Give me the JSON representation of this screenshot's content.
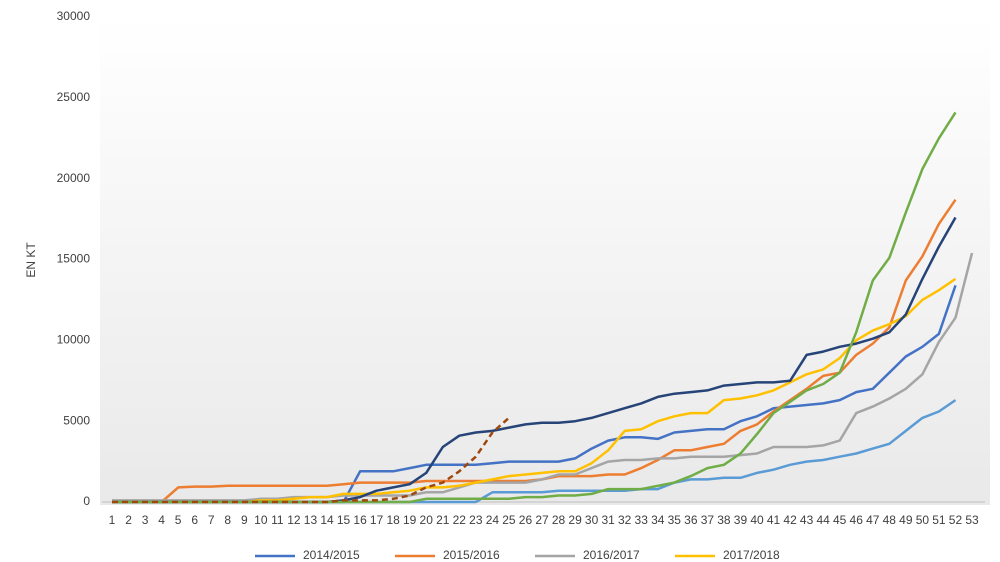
{
  "chart_data": {
    "type": "line",
    "y_label": "EN KT",
    "categories": [
      "1",
      "2",
      "3",
      "4",
      "5",
      "6",
      "7",
      "8",
      "9",
      "10",
      "11",
      "12",
      "13",
      "14",
      "15",
      "16",
      "17",
      "18",
      "19",
      "20",
      "21",
      "22",
      "23",
      "24",
      "25",
      "26",
      "27",
      "28",
      "29",
      "30",
      "31",
      "32",
      "33",
      "34",
      "35",
      "36",
      "37",
      "38",
      "39",
      "40",
      "41",
      "42",
      "43",
      "44",
      "45",
      "46",
      "47",
      "48",
      "49",
      "50",
      "51",
      "52",
      "53"
    ],
    "ylim": [
      0,
      30000
    ],
    "yticks": [
      0,
      5000,
      10000,
      15000,
      20000,
      25000,
      30000
    ],
    "series": [
      {
        "name": "2014/2015",
        "color": "#4472c4",
        "values": [
          0,
          0,
          0,
          0,
          0,
          0,
          0,
          0,
          0,
          0,
          0,
          0,
          0,
          0,
          0,
          1900,
          1900,
          1900,
          2100,
          2300,
          2300,
          2300,
          2300,
          2400,
          2500,
          2500,
          2500,
          2500,
          2700,
          3300,
          3800,
          4000,
          4000,
          3900,
          4300,
          4400,
          4500,
          4500,
          5000,
          5300,
          5800,
          5900,
          6000,
          6100,
          6300,
          6800,
          7000,
          8000,
          9000,
          9600,
          10400,
          13400,
          null
        ]
      },
      {
        "name": "2015/2016",
        "color": "#ed7d31",
        "values": [
          0,
          0,
          0,
          0,
          900,
          950,
          950,
          1000,
          1000,
          1000,
          1000,
          1000,
          1000,
          1000,
          1100,
          1200,
          1200,
          1200,
          1200,
          1300,
          1300,
          1300,
          1300,
          1300,
          1300,
          1300,
          1400,
          1600,
          1600,
          1600,
          1700,
          1700,
          2100,
          2600,
          3200,
          3200,
          3400,
          3600,
          4400,
          4800,
          5600,
          6300,
          7000,
          7800,
          8000,
          9100,
          9800,
          10800,
          13700,
          15200,
          17200,
          18700,
          null
        ]
      },
      {
        "name": "2016/2017",
        "color": "#a5a5a5",
        "values": [
          100,
          100,
          100,
          100,
          100,
          100,
          100,
          100,
          100,
          200,
          200,
          300,
          300,
          300,
          400,
          400,
          400,
          400,
          400,
          600,
          600,
          900,
          1200,
          1200,
          1200,
          1200,
          1400,
          1700,
          1700,
          2100,
          2500,
          2600,
          2600,
          2700,
          2700,
          2800,
          2800,
          2800,
          2900,
          3000,
          3400,
          3400,
          3400,
          3500,
          3800,
          5500,
          5900,
          6400,
          7000,
          7900,
          9900,
          11400,
          15400
        ]
      },
      {
        "name": "2017/2018",
        "color": "#ffc000",
        "values": [
          0,
          0,
          0,
          0,
          0,
          0,
          0,
          0,
          0,
          100,
          100,
          200,
          300,
          300,
          500,
          500,
          500,
          600,
          700,
          900,
          900,
          1000,
          1200,
          1400,
          1600,
          1700,
          1800,
          1900,
          1900,
          2400,
          3200,
          4400,
          4500,
          5000,
          5300,
          5500,
          5500,
          6300,
          6400,
          6600,
          6900,
          7400,
          7900,
          8200,
          8900,
          10000,
          10600,
          11000,
          11500,
          12500,
          13100,
          13800,
          null
        ]
      },
      {
        "color": "#5b9bd5",
        "values": [
          0,
          0,
          0,
          0,
          0,
          0,
          0,
          0,
          0,
          0,
          0,
          0,
          0,
          0,
          0,
          0,
          0,
          0,
          0,
          0,
          0,
          0,
          0,
          600,
          600,
          600,
          600,
          700,
          700,
          700,
          700,
          700,
          800,
          800,
          1200,
          1400,
          1400,
          1500,
          1500,
          1800,
          2000,
          2300,
          2500,
          2600,
          2800,
          3000,
          3300,
          3600,
          4400,
          5200,
          5600,
          6300,
          null
        ]
      },
      {
        "color": "#264478",
        "values": [
          0,
          0,
          0,
          0,
          0,
          0,
          0,
          0,
          0,
          0,
          0,
          0,
          0,
          0,
          100,
          300,
          700,
          900,
          1100,
          1800,
          3400,
          4100,
          4300,
          4400,
          4600,
          4800,
          4900,
          4900,
          5000,
          5200,
          5500,
          5800,
          6100,
          6500,
          6700,
          6800,
          6900,
          7200,
          7300,
          7400,
          7400,
          7500,
          9100,
          9300,
          9600,
          9800,
          10100,
          10500,
          11600,
          13800,
          15800,
          17600,
          null
        ]
      },
      {
        "color": "#70ad47",
        "values": [
          0,
          0,
          0,
          0,
          0,
          0,
          0,
          0,
          0,
          0,
          0,
          0,
          0,
          0,
          0,
          0,
          0,
          0,
          0,
          200,
          200,
          200,
          200,
          200,
          200,
          300,
          300,
          400,
          400,
          500,
          800,
          800,
          800,
          1000,
          1200,
          1600,
          2100,
          2300,
          3000,
          4200,
          5500,
          6200,
          6900,
          7300,
          8000,
          10500,
          13700,
          15100,
          17900,
          20600,
          22500,
          24100,
          null
        ]
      },
      {
        "color": "#9e480e",
        "dashed": true,
        "values": [
          0,
          0,
          0,
          0,
          0,
          0,
          0,
          0,
          0,
          0,
          0,
          0,
          0,
          0,
          100,
          100,
          100,
          200,
          400,
          900,
          1200,
          1900,
          2800,
          4300,
          5200,
          null,
          null,
          null,
          null,
          null,
          null,
          null,
          null,
          null,
          null,
          null,
          null,
          null,
          null,
          null,
          null,
          null,
          null,
          null,
          null,
          null,
          null,
          null,
          null,
          null,
          null,
          null,
          null
        ]
      }
    ]
  }
}
